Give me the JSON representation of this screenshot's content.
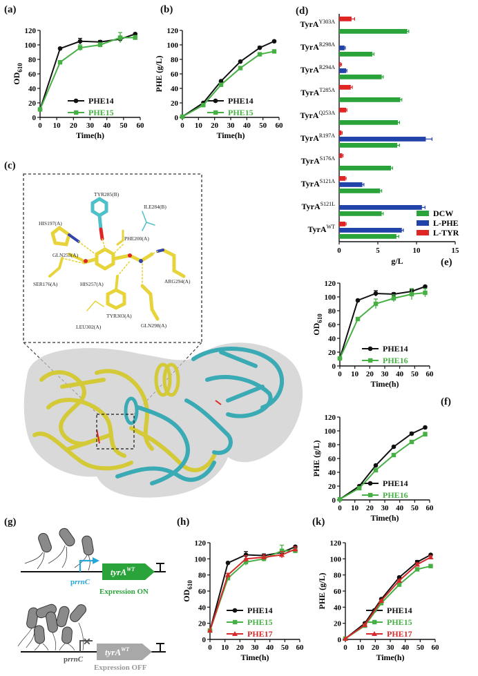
{
  "labels": {
    "a": "(a)",
    "b": "(b)",
    "c": "(c)",
    "d": "(d)",
    "e": "(e)",
    "f": "(f)",
    "g": "(g)",
    "h": "(h)",
    "k": "(k)"
  },
  "colors": {
    "phe14": "#111111",
    "phe15": "#46b044",
    "phe16": "#46b044",
    "phe17": "#d62a2a",
    "dcw": "#2aa33a",
    "lphe": "#2244aa",
    "ltyr": "#e02525",
    "yellow_protein": "#e3d93a",
    "cyan_protein": "#3ab0bb"
  },
  "structure": {
    "residues": [
      "TYR285(B)",
      "ILE284(B)",
      "HIS197(A)",
      "PHE200(A)",
      "GLN253(A)",
      "SER176(A)",
      "HIS257(A)",
      "ARG294(A)",
      "TYR303(A)",
      "GLN298(A)",
      "LEU302(A)"
    ]
  },
  "schematic": {
    "promoter_top": "prrnC",
    "gene_top": "tyrA",
    "gene_top_sup": "WT",
    "status_top": "Expression ON",
    "promoter_bottom": "prrnC",
    "gene_bottom": "tyrA",
    "gene_bottom_sup": "WT",
    "status_bottom": "Expression OFF",
    "promoter_prefix": "p",
    "promoter_italic": "rrnC",
    "cross_glyph": "✕"
  },
  "chart_data": [
    {
      "id": "a",
      "type": "line",
      "xlabel": "Time(h)",
      "ylabel": "OD",
      "ylabel_sub": "610",
      "xlim": [
        0,
        60
      ],
      "ylim": [
        0,
        120
      ],
      "xticks": [
        0,
        10,
        20,
        30,
        40,
        50,
        60
      ],
      "yticks": [
        0,
        20,
        40,
        60,
        80,
        100,
        120
      ],
      "x": [
        0,
        12,
        24,
        36,
        48,
        57
      ],
      "series": [
        {
          "name": "PHE14",
          "values": [
            11,
            95,
            105,
            104,
            108,
            115
          ],
          "errors": [
            0,
            1,
            4,
            2,
            3,
            1
          ]
        },
        {
          "name": "PHE15",
          "values": [
            11,
            76,
            96,
            100,
            110,
            110
          ],
          "errors": [
            0,
            2,
            4,
            3,
            7,
            3
          ]
        }
      ]
    },
    {
      "id": "b",
      "type": "line",
      "xlabel": "Time(h)",
      "ylabel": "PHE (g/L)",
      "ylabel_sub": "",
      "xlim": [
        0,
        60
      ],
      "ylim": [
        0,
        120
      ],
      "xticks": [
        0,
        10,
        20,
        30,
        40,
        50,
        60
      ],
      "yticks": [
        0,
        20,
        40,
        60,
        80,
        100,
        120
      ],
      "x": [
        0,
        13,
        24,
        36,
        48,
        57
      ],
      "series": [
        {
          "name": "PHE14",
          "values": [
            1,
            20,
            50,
            77,
            96,
            105
          ],
          "errors": [
            0,
            1,
            1,
            1,
            2,
            1
          ]
        },
        {
          "name": "PHE15",
          "values": [
            1,
            17,
            45,
            68,
            87,
            91
          ],
          "errors": [
            0,
            1,
            1,
            1,
            2,
            2
          ]
        }
      ]
    },
    {
      "id": "d",
      "type": "bar",
      "orientation": "horizontal",
      "xlabel": "g/L",
      "xlim": [
        0,
        15
      ],
      "xticks": [
        0,
        5,
        10,
        15
      ],
      "categories": [
        {
          "base": "TyrA",
          "sup": "Y303A"
        },
        {
          "base": "TyrA",
          "sup": "R298A"
        },
        {
          "base": "TyrA",
          "sup": "R294A"
        },
        {
          "base": "TyrA",
          "sup": "T285A"
        },
        {
          "base": "TyrA",
          "sup": "Q253A"
        },
        {
          "base": "TyrA",
          "sup": "R197A"
        },
        {
          "base": "TyrA",
          "sup": "S176A"
        },
        {
          "base": "TyrA",
          "sup": "S121A"
        },
        {
          "base": "TyrA",
          "sup": "S121L"
        },
        {
          "base": "TyrA",
          "sup": "WT"
        }
      ],
      "series": [
        {
          "name": "L-TYR",
          "values": [
            1.6,
            0,
            0.2,
            1.5,
            0.9,
            0.3,
            0.4,
            0.8,
            0,
            0.8
          ],
          "errors": [
            0.4,
            0,
            0.1,
            0.2,
            0.1,
            0.1,
            0.1,
            0.1,
            0,
            0.1
          ]
        },
        {
          "name": "L-PHE",
          "values": [
            0,
            0.7,
            0.9,
            0,
            0,
            11.2,
            0,
            3.0,
            10.7,
            8.1
          ],
          "errors": [
            0,
            0.1,
            0.1,
            0,
            0,
            0.8,
            0,
            0.2,
            0.4,
            0.2
          ]
        },
        {
          "name": "DCW",
          "values": [
            8.8,
            4.3,
            5.5,
            7.9,
            7.6,
            7.5,
            6.7,
            5.3,
            5.5,
            7.4
          ],
          "errors": [
            0.2,
            0.2,
            0.2,
            0.2,
            0.2,
            0.3,
            0.2,
            0.2,
            0.2,
            0.3
          ]
        }
      ],
      "legend": [
        "DCW",
        "L-PHE",
        "L-TYR"
      ]
    },
    {
      "id": "e",
      "type": "line",
      "xlabel": "Time(h)",
      "ylabel": "OD",
      "ylabel_sub": "610",
      "xlim": [
        0,
        60
      ],
      "ylim": [
        0,
        120
      ],
      "xticks": [
        0,
        10,
        20,
        30,
        40,
        50,
        60
      ],
      "yticks": [
        0,
        20,
        40,
        60,
        80,
        100,
        120
      ],
      "x": [
        0,
        12,
        24,
        36,
        48,
        57
      ],
      "series": [
        {
          "name": "PHE14",
          "values": [
            11,
            95,
            105,
            104,
            108,
            115
          ],
          "errors": [
            0,
            1,
            4,
            2,
            3,
            1
          ]
        },
        {
          "name": "PHE16",
          "values": [
            11,
            68,
            90,
            98,
            104,
            106
          ],
          "errors": [
            0,
            2,
            7,
            5,
            8,
            6
          ]
        }
      ]
    },
    {
      "id": "f",
      "type": "line",
      "xlabel": "Time(h)",
      "ylabel": "PHE (g/L)",
      "ylabel_sub": "",
      "xlim": [
        0,
        60
      ],
      "ylim": [
        0,
        120
      ],
      "xticks": [
        0,
        10,
        20,
        30,
        40,
        50,
        60
      ],
      "yticks": [
        0,
        20,
        40,
        60,
        80,
        100,
        120
      ],
      "x": [
        0,
        13,
        24,
        36,
        48,
        57
      ],
      "series": [
        {
          "name": "PHE14",
          "values": [
            1,
            20,
            50,
            77,
            96,
            105
          ],
          "errors": [
            0,
            1,
            1,
            1,
            2,
            1
          ]
        },
        {
          "name": "PHE16",
          "values": [
            1,
            17,
            43,
            65,
            84,
            95
          ],
          "errors": [
            0,
            1,
            1,
            2,
            2,
            3
          ]
        }
      ]
    },
    {
      "id": "h",
      "type": "line",
      "xlabel": "Time(h)",
      "ylabel": "OD",
      "ylabel_sub": "610",
      "xlim": [
        0,
        60
      ],
      "ylim": [
        0,
        120
      ],
      "xticks": [
        0,
        10,
        20,
        30,
        40,
        50,
        60
      ],
      "yticks": [
        0,
        20,
        40,
        60,
        80,
        100,
        120
      ],
      "x": [
        0,
        12,
        24,
        36,
        48,
        57
      ],
      "series": [
        {
          "name": "PHE14",
          "values": [
            11,
            95,
            105,
            104,
            108,
            115
          ],
          "errors": [
            0,
            1,
            4,
            2,
            3,
            1
          ]
        },
        {
          "name": "PHE15",
          "values": [
            11,
            76,
            96,
            100,
            110,
            110
          ],
          "errors": [
            0,
            2,
            4,
            3,
            7,
            3
          ]
        },
        {
          "name": "PHE17",
          "values": [
            11,
            80,
            100,
            102,
            105,
            112
          ],
          "errors": [
            0,
            2,
            4,
            3,
            4,
            3
          ]
        }
      ]
    },
    {
      "id": "k",
      "type": "line",
      "xlabel": "Time(h)",
      "ylabel": "PHE (g/L)",
      "ylabel_sub": "",
      "xlim": [
        0,
        60
      ],
      "ylim": [
        0,
        120
      ],
      "xticks": [
        0,
        10,
        20,
        30,
        40,
        50,
        60
      ],
      "yticks": [
        0,
        20,
        40,
        60,
        80,
        100,
        120
      ],
      "x": [
        0,
        13,
        24,
        36,
        48,
        57
      ],
      "series": [
        {
          "name": "PHE14",
          "values": [
            1,
            20,
            50,
            77,
            96,
            105
          ],
          "errors": [
            0,
            1,
            1,
            1,
            2,
            1
          ]
        },
        {
          "name": "PHE15",
          "values": [
            1,
            17,
            45,
            68,
            87,
            91
          ],
          "errors": [
            0,
            1,
            1,
            1,
            2,
            2
          ]
        },
        {
          "name": "PHE17",
          "values": [
            1,
            18,
            48,
            73,
            93,
            102
          ],
          "errors": [
            0,
            1,
            1,
            1,
            2,
            2
          ]
        }
      ]
    }
  ]
}
